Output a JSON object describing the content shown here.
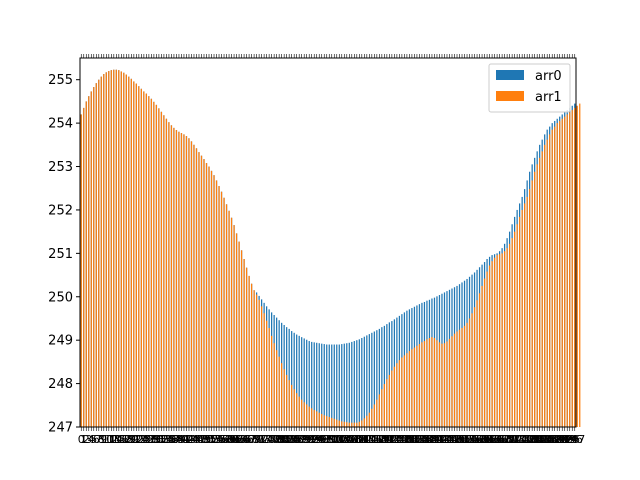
{
  "chart_data": {
    "type": "bar",
    "title": "",
    "xlabel": "",
    "ylabel": "",
    "ylim": [
      247,
      255.5
    ],
    "yticks": [
      247,
      248,
      249,
      250,
      251,
      252,
      253,
      254,
      255
    ],
    "grid": false,
    "legend_position": "upper right",
    "categories_note": "bar index 0..199",
    "series": [
      {
        "name": "arr0",
        "color": "#1f77b4",
        "values": [
          254.2,
          254.35,
          254.5,
          254.62,
          254.73,
          254.83,
          254.92,
          255.0,
          255.07,
          255.13,
          255.17,
          255.2,
          255.22,
          255.23,
          255.23,
          255.22,
          255.19,
          255.16,
          255.12,
          255.07,
          255.02,
          254.96,
          254.91,
          254.85,
          254.79,
          254.73,
          254.68,
          254.62,
          254.56,
          254.49,
          254.42,
          254.34,
          254.26,
          254.18,
          254.1,
          254.02,
          253.95,
          253.89,
          253.84,
          253.8,
          253.77,
          253.74,
          253.7,
          253.65,
          253.58,
          253.5,
          253.42,
          253.33,
          253.25,
          253.17,
          253.08,
          253.0,
          252.9,
          252.8,
          252.68,
          252.55,
          252.42,
          252.28,
          252.13,
          251.98,
          251.82,
          251.65,
          251.46,
          251.27,
          251.07,
          250.87,
          250.67,
          250.48,
          250.3,
          250.15,
          250.1,
          250.02,
          249.94,
          249.86,
          249.78,
          249.71,
          249.64,
          249.58,
          249.52,
          249.46,
          249.4,
          249.35,
          249.3,
          249.26,
          249.21,
          249.17,
          249.13,
          249.1,
          249.07,
          249.04,
          249.01,
          248.98,
          248.96,
          248.95,
          248.94,
          248.93,
          248.92,
          248.91,
          248.9,
          248.9,
          248.9,
          248.9,
          248.9,
          248.9,
          248.91,
          248.92,
          248.93,
          248.94,
          248.96,
          248.98,
          249.0,
          249.02,
          249.05,
          249.08,
          249.11,
          249.14,
          249.17,
          249.2,
          249.23,
          249.26,
          249.3,
          249.33,
          249.37,
          249.41,
          249.44,
          249.48,
          249.52,
          249.56,
          249.6,
          249.64,
          249.68,
          249.71,
          249.74,
          249.77,
          249.8,
          249.83,
          249.86,
          249.88,
          249.91,
          249.93,
          249.96,
          249.98,
          250.01,
          250.04,
          250.07,
          250.1,
          250.13,
          250.16,
          250.19,
          250.22,
          250.25,
          250.29,
          250.33,
          250.37,
          250.41,
          250.46,
          250.51,
          250.56,
          250.62,
          250.68,
          250.74,
          250.8,
          250.87,
          250.92,
          250.96,
          250.98,
          251.0,
          251.05,
          251.12,
          251.22,
          251.35,
          251.5,
          251.67,
          251.84,
          252.0,
          252.15,
          252.3,
          252.48,
          252.68,
          252.88,
          253.05,
          253.2,
          253.35,
          253.5,
          253.62,
          253.74,
          253.85,
          253.92,
          254.0,
          254.05,
          254.1,
          254.15,
          254.2,
          254.25,
          254.3,
          254.35,
          254.4,
          254.45
        ]
      },
      {
        "name": "arr1",
        "color": "#ff7f0e",
        "values": [
          254.2,
          254.35,
          254.5,
          254.62,
          254.73,
          254.83,
          254.92,
          255.0,
          255.07,
          255.13,
          255.17,
          255.2,
          255.22,
          255.23,
          255.23,
          255.22,
          255.19,
          255.16,
          255.12,
          255.07,
          255.02,
          254.96,
          254.91,
          254.85,
          254.79,
          254.73,
          254.68,
          254.62,
          254.56,
          254.49,
          254.42,
          254.34,
          254.26,
          254.18,
          254.1,
          254.02,
          253.95,
          253.89,
          253.84,
          253.8,
          253.77,
          253.74,
          253.7,
          253.65,
          253.58,
          253.5,
          253.42,
          253.33,
          253.25,
          253.17,
          253.08,
          253.0,
          252.9,
          252.8,
          252.68,
          252.55,
          252.42,
          252.28,
          252.13,
          251.98,
          251.82,
          251.65,
          251.46,
          251.27,
          251.07,
          250.87,
          250.67,
          250.48,
          250.3,
          250.15,
          250.05,
          249.93,
          249.78,
          249.62,
          249.45,
          249.28,
          249.1,
          248.93,
          248.77,
          248.62,
          248.47,
          248.33,
          248.2,
          248.08,
          247.97,
          247.87,
          247.78,
          247.7,
          247.63,
          247.57,
          247.52,
          247.47,
          247.43,
          247.39,
          247.36,
          247.33,
          247.3,
          247.27,
          247.25,
          247.23,
          247.21,
          247.19,
          247.17,
          247.15,
          247.13,
          247.12,
          247.11,
          247.1,
          247.1,
          247.1,
          247.1,
          247.12,
          247.15,
          247.2,
          247.26,
          247.33,
          247.42,
          247.52,
          247.63,
          247.75,
          247.87,
          247.99,
          248.1,
          248.2,
          248.3,
          248.39,
          248.47,
          248.54,
          248.6,
          248.65,
          248.7,
          248.75,
          248.79,
          248.83,
          248.87,
          248.91,
          248.95,
          248.98,
          249.02,
          249.05,
          249.07,
          249.05,
          249.0,
          248.95,
          248.92,
          248.93,
          248.97,
          249.03,
          249.09,
          249.15,
          249.2,
          249.24,
          249.28,
          249.33,
          249.4,
          249.5,
          249.62,
          249.76,
          249.92,
          250.08,
          250.25,
          250.42,
          250.58,
          250.72,
          250.82,
          250.9,
          250.96,
          250.98,
          251.0,
          251.05,
          251.12,
          251.22,
          251.35,
          251.5,
          251.67,
          251.84,
          252.0,
          252.15,
          252.3,
          252.48,
          252.68,
          252.88,
          253.05,
          253.2,
          253.35,
          253.5,
          253.62,
          253.74,
          253.85,
          253.92,
          254.0,
          254.05,
          254.1,
          254.15,
          254.2,
          254.25,
          254.3,
          254.35,
          254.4,
          254.45
        ]
      }
    ],
    "xtick_labels": [
      "0",
      "1",
      "2",
      "3",
      "4",
      "5",
      "6",
      "7",
      "8",
      "9",
      "10",
      "11",
      "12",
      "13",
      "14",
      "15",
      "16",
      "17",
      "18",
      "19",
      "20",
      "21",
      "22",
      "23",
      "24",
      "25",
      "26",
      "27",
      "28",
      "29",
      "30",
      "31",
      "32",
      "33",
      "34",
      "35",
      "36",
      "37",
      "38",
      "39",
      "40",
      "41",
      "42",
      "43",
      "44",
      "45",
      "46",
      "47",
      "48",
      "49",
      "50",
      "51",
      "52",
      "53",
      "54",
      "55",
      "56",
      "57",
      "58",
      "59",
      "60",
      "61",
      "62",
      "63",
      "64",
      "65",
      "66",
      "67",
      "68",
      "69",
      "70",
      "71",
      "72",
      "73",
      "74",
      "75",
      "76",
      "77",
      "78",
      "79",
      "80",
      "81",
      "82",
      "83",
      "84",
      "85",
      "86",
      "87",
      "88",
      "89",
      "90",
      "91",
      "92",
      "93",
      "94",
      "95",
      "96",
      "97",
      "98",
      "99",
      "100",
      "101",
      "102",
      "103",
      "104",
      "105",
      "106",
      "107",
      "108",
      "109",
      "110",
      "111",
      "112",
      "113",
      "114",
      "115",
      "116",
      "117",
      "118",
      "119",
      "120",
      "121",
      "122",
      "123",
      "124",
      "125",
      "126",
      "127",
      "128",
      "129",
      "130",
      "131",
      "132",
      "133",
      "134",
      "135",
      "136",
      "137",
      "138",
      "139",
      "140",
      "141",
      "142",
      "143",
      "144",
      "145",
      "146",
      "147",
      "148",
      "149",
      "150",
      "151",
      "152",
      "153",
      "154",
      "155",
      "156",
      "157",
      "158",
      "159",
      "160",
      "161",
      "162",
      "163",
      "164",
      "165",
      "166",
      "167",
      "168",
      "169",
      "170",
      "171",
      "172",
      "173",
      "174",
      "175",
      "176",
      "177",
      "178",
      "179",
      "180",
      "181",
      "182",
      "183",
      "184",
      "185",
      "186",
      "187",
      "188",
      "189",
      "190",
      "191",
      "192",
      "193",
      "194",
      "195",
      "196",
      "197",
      "198",
      "199"
    ]
  }
}
